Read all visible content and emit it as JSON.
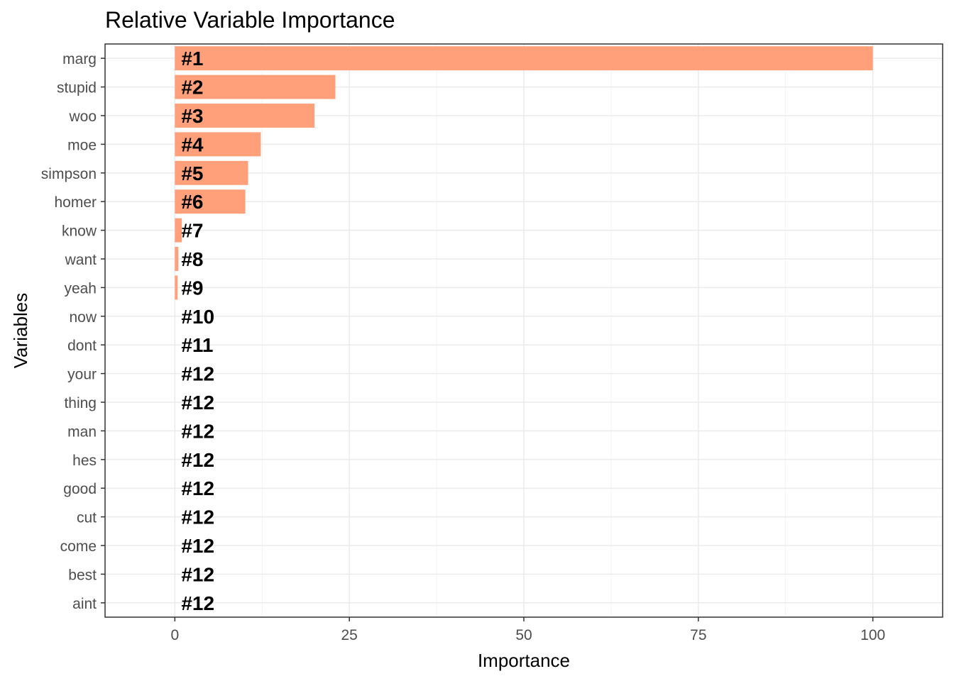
{
  "chart_data": {
    "type": "bar",
    "orientation": "horizontal",
    "title": "Relative Variable Importance",
    "xlabel": "Importance",
    "ylabel": "Variables",
    "xlim": [
      -10,
      110
    ],
    "xticks": [
      0,
      25,
      50,
      75,
      100
    ],
    "grid": true,
    "bar_color": "#FFA07A",
    "categories": [
      "marg",
      "stupid",
      "woo",
      "moe",
      "simpson",
      "homer",
      "know",
      "want",
      "yeah",
      "now",
      "dont",
      "your",
      "thing",
      "man",
      "hes",
      "good",
      "cut",
      "come",
      "best",
      "aint"
    ],
    "values": [
      100,
      23,
      20,
      12.3,
      10.5,
      10.1,
      1.0,
      0.5,
      0.4,
      0,
      0,
      0,
      0,
      0,
      0,
      0,
      0,
      0,
      0,
      0
    ],
    "labels": [
      "#1",
      "#2",
      "#3",
      "#4",
      "#5",
      "#6",
      "#7",
      "#8",
      "#9",
      "#10",
      "#11",
      "#12",
      "#12",
      "#12",
      "#12",
      "#12",
      "#12",
      "#12",
      "#12",
      "#12"
    ]
  }
}
